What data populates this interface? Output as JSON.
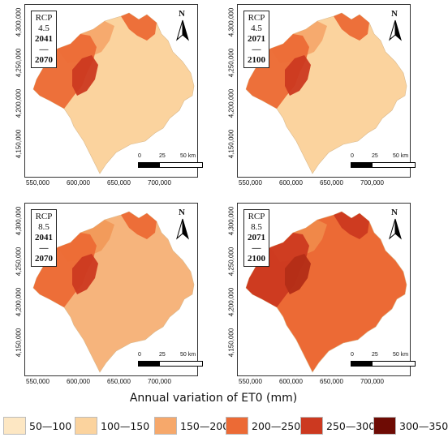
{
  "legend": {
    "title": "Annual variation of ET0 (mm)",
    "classes": [
      {
        "label": "50—100",
        "color": "#fde7c3"
      },
      {
        "label": "100—150",
        "color": "#fbd39e"
      },
      {
        "label": "150—200",
        "color": "#f6a86b"
      },
      {
        "label": "200—250",
        "color": "#ec6a35"
      },
      {
        "label": "250—300",
        "color": "#cc3920"
      },
      {
        "label": "300—350",
        "color": "#6e0b04"
      }
    ]
  },
  "panels": [
    {
      "scenario": "RCP 4.5",
      "period": "2041—2070",
      "dominant": "#fbd39e",
      "west": "#ec6a35",
      "core": "#cc3920",
      "mid": "#f6a86b"
    },
    {
      "scenario": "RCP 4.5",
      "period": "2071—2100",
      "dominant": "#fbd39e",
      "west": "#ec6a35",
      "core": "#cc3920",
      "mid": "#f6a86b"
    },
    {
      "scenario": "RCP 8.5",
      "period": "2041—2070",
      "dominant": "#f6b47c",
      "west": "#ec6a35",
      "core": "#cc3920",
      "mid": "#f19a5a"
    },
    {
      "scenario": "RCP 8.5",
      "period": "2071—2100",
      "dominant": "#ec6a35",
      "west": "#cc3920",
      "core": "#b32d17",
      "mid": "#f08a4b"
    }
  ],
  "axes": {
    "y_ticks": [
      "4,300,000",
      "4,250,000",
      "4,200,000",
      "4,150,000"
    ],
    "x_ticks": [
      "550,000",
      "600,000",
      "650,000",
      "700,000"
    ]
  },
  "scale": {
    "ticks": [
      "0",
      "25",
      "50 km"
    ]
  },
  "north_label": "N"
}
